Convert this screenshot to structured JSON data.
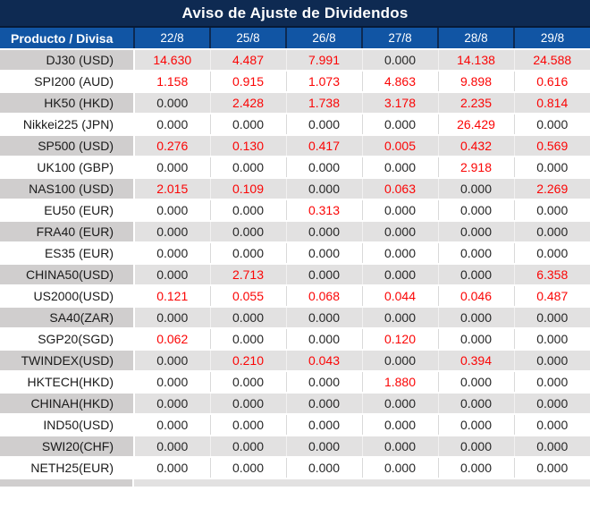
{
  "title": "Aviso de Ajuste de Dividendos",
  "colors": {
    "title_bar_bg": "#0e2a52",
    "header_row_bg": "#1155a4",
    "odd_row_bg": "#e2e1e1",
    "product_column_odd_bg": "#d0cece",
    "nonzero_value_color": "#fb0505",
    "zero_value_color": "#262626",
    "header_text_color": "#ffffff"
  },
  "table": {
    "product_header": "Producto / Divisa",
    "date_headers": [
      "22/8",
      "25/8",
      "26/8",
      "27/8",
      "28/8",
      "29/8"
    ],
    "rows": [
      {
        "product": "DJ30 (USD)",
        "values": [
          "14.630",
          "4.487",
          "7.991",
          "0.000",
          "14.138",
          "24.588"
        ]
      },
      {
        "product": "SPI200 (AUD)",
        "values": [
          "1.158",
          "0.915",
          "1.073",
          "4.863",
          "9.898",
          "0.616"
        ]
      },
      {
        "product": "HK50 (HKD)",
        "values": [
          "0.000",
          "2.428",
          "1.738",
          "3.178",
          "2.235",
          "0.814"
        ]
      },
      {
        "product": "Nikkei225 (JPN)",
        "values": [
          "0.000",
          "0.000",
          "0.000",
          "0.000",
          "26.429",
          "0.000"
        ]
      },
      {
        "product": "SP500 (USD)",
        "values": [
          "0.276",
          "0.130",
          "0.417",
          "0.005",
          "0.432",
          "0.569"
        ]
      },
      {
        "product": "UK100 (GBP)",
        "values": [
          "0.000",
          "0.000",
          "0.000",
          "0.000",
          "2.918",
          "0.000"
        ]
      },
      {
        "product": "NAS100 (USD)",
        "values": [
          "2.015",
          "0.109",
          "0.000",
          "0.063",
          "0.000",
          "2.269"
        ]
      },
      {
        "product": "EU50 (EUR)",
        "values": [
          "0.000",
          "0.000",
          "0.313",
          "0.000",
          "0.000",
          "0.000"
        ]
      },
      {
        "product": "FRA40 (EUR)",
        "values": [
          "0.000",
          "0.000",
          "0.000",
          "0.000",
          "0.000",
          "0.000"
        ]
      },
      {
        "product": "ES35 (EUR)",
        "values": [
          "0.000",
          "0.000",
          "0.000",
          "0.000",
          "0.000",
          "0.000"
        ]
      },
      {
        "product": "CHINA50(USD)",
        "values": [
          "0.000",
          "2.713",
          "0.000",
          "0.000",
          "0.000",
          "6.358"
        ]
      },
      {
        "product": "US2000(USD)",
        "values": [
          "0.121",
          "0.055",
          "0.068",
          "0.044",
          "0.046",
          "0.487"
        ]
      },
      {
        "product": "SA40(ZAR)",
        "values": [
          "0.000",
          "0.000",
          "0.000",
          "0.000",
          "0.000",
          "0.000"
        ]
      },
      {
        "product": "SGP20(SGD)",
        "values": [
          "0.062",
          "0.000",
          "0.000",
          "0.120",
          "0.000",
          "0.000"
        ]
      },
      {
        "product": "TWINDEX(USD)",
        "values": [
          "0.000",
          "0.210",
          "0.043",
          "0.000",
          "0.394",
          "0.000"
        ]
      },
      {
        "product": "HKTECH(HKD)",
        "values": [
          "0.000",
          "0.000",
          "0.000",
          "1.880",
          "0.000",
          "0.000"
        ]
      },
      {
        "product": "CHINAH(HKD)",
        "values": [
          "0.000",
          "0.000",
          "0.000",
          "0.000",
          "0.000",
          "0.000"
        ]
      },
      {
        "product": "IND50(USD)",
        "values": [
          "0.000",
          "0.000",
          "0.000",
          "0.000",
          "0.000",
          "0.000"
        ]
      },
      {
        "product": "SWI20(CHF)",
        "values": [
          "0.000",
          "0.000",
          "0.000",
          "0.000",
          "0.000",
          "0.000"
        ]
      },
      {
        "product": "NETH25(EUR)",
        "values": [
          "0.000",
          "0.000",
          "0.000",
          "0.000",
          "0.000",
          "0.000"
        ]
      }
    ],
    "zero_display_value": "0.000"
  }
}
